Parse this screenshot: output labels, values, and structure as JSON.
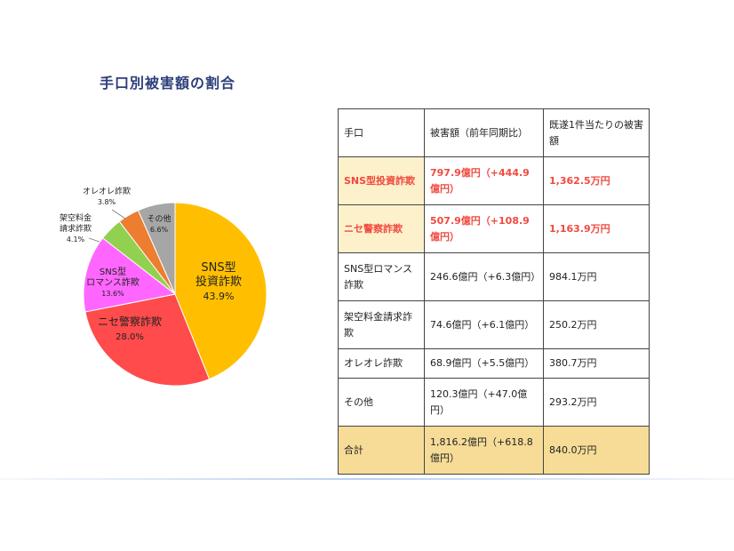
{
  "title": "手口別被害額の割合",
  "chart_data": {
    "type": "pie",
    "slices": [
      {
        "lines": [
          "SNS型",
          "投資詐欺"
        ],
        "pct_label": "43.9%",
        "value": 43.9,
        "color": "#ffbf00"
      },
      {
        "lines": [
          "ニセ警察詐欺"
        ],
        "pct_label": "28.0%",
        "value": 28.0,
        "color": "#ff4b4b"
      },
      {
        "lines": [
          "SNS型",
          "ロマンス詐欺"
        ],
        "pct_label": "13.6%",
        "value": 13.6,
        "color": "#ff66ff"
      },
      {
        "lines": [
          "架空料金",
          "請求詐欺"
        ],
        "pct_label": "4.1%",
        "value": 4.1,
        "color": "#92d050"
      },
      {
        "lines": [
          "オレオレ詐欺"
        ],
        "pct_label": "3.8%",
        "value": 3.8,
        "color": "#ed7d31"
      },
      {
        "lines": [
          "その他"
        ],
        "pct_label": "6.6%",
        "value": 6.6,
        "color": "#a6a6a6"
      }
    ]
  },
  "table": {
    "headers": [
      "手口",
      "被害額（前年同期比）",
      "既遂1件当たりの被害額"
    ],
    "rows": [
      {
        "method": "SNS型投資詐欺",
        "amount": "797.9億円（+444.9億円）",
        "per_case": "1,362.5万円"
      },
      {
        "method": "ニセ警察詐欺",
        "amount": "507.9億円（+108.9億円）",
        "per_case": "1,163.9万円"
      },
      {
        "method": "SNS型ロマンス詐欺",
        "amount": "246.6億円（+6.3億円）",
        "per_case": "984.1万円"
      },
      {
        "method": "架空料金請求詐欺",
        "amount": "74.6億円（+6.1億円）",
        "per_case": "250.2万円"
      },
      {
        "method": "オレオレ詐欺",
        "amount": "68.9億円（+5.5億円）",
        "per_case": "380.7万円"
      },
      {
        "method": "その他",
        "amount": "120.3億円（+47.0億円）",
        "per_case": "293.2万円"
      },
      {
        "method": "合計",
        "amount": "1,816.2億円（+618.8億円）",
        "per_case": "840.0万円"
      }
    ]
  }
}
